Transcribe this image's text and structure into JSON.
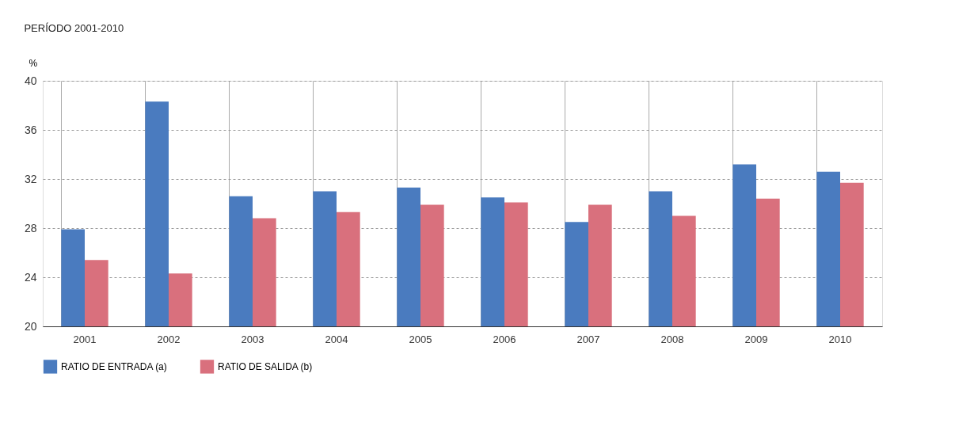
{
  "chart_data": {
    "type": "bar",
    "title": "PERÍODO 2001-2010",
    "ylabel": "%",
    "categories": [
      "2001",
      "2002",
      "2003",
      "2004",
      "2005",
      "2006",
      "2007",
      "2008",
      "2009",
      "2010"
    ],
    "series": [
      {
        "name": "RATIO DE ENTRADA (a)",
        "color": "#4a7bbf",
        "values": [
          27.9,
          38.3,
          30.6,
          31.0,
          31.3,
          30.5,
          28.5,
          31.0,
          33.2,
          32.6
        ]
      },
      {
        "name": "RATIO DE SALIDA (b)",
        "color": "#d9707d",
        "values": [
          25.4,
          24.3,
          28.8,
          29.3,
          29.9,
          30.1,
          29.9,
          29.0,
          30.4,
          31.7
        ]
      }
    ],
    "ylim": [
      20,
      40
    ],
    "yticks": [
      20,
      24,
      28,
      32,
      36,
      40
    ],
    "grid": true,
    "legend": "bottom left"
  }
}
